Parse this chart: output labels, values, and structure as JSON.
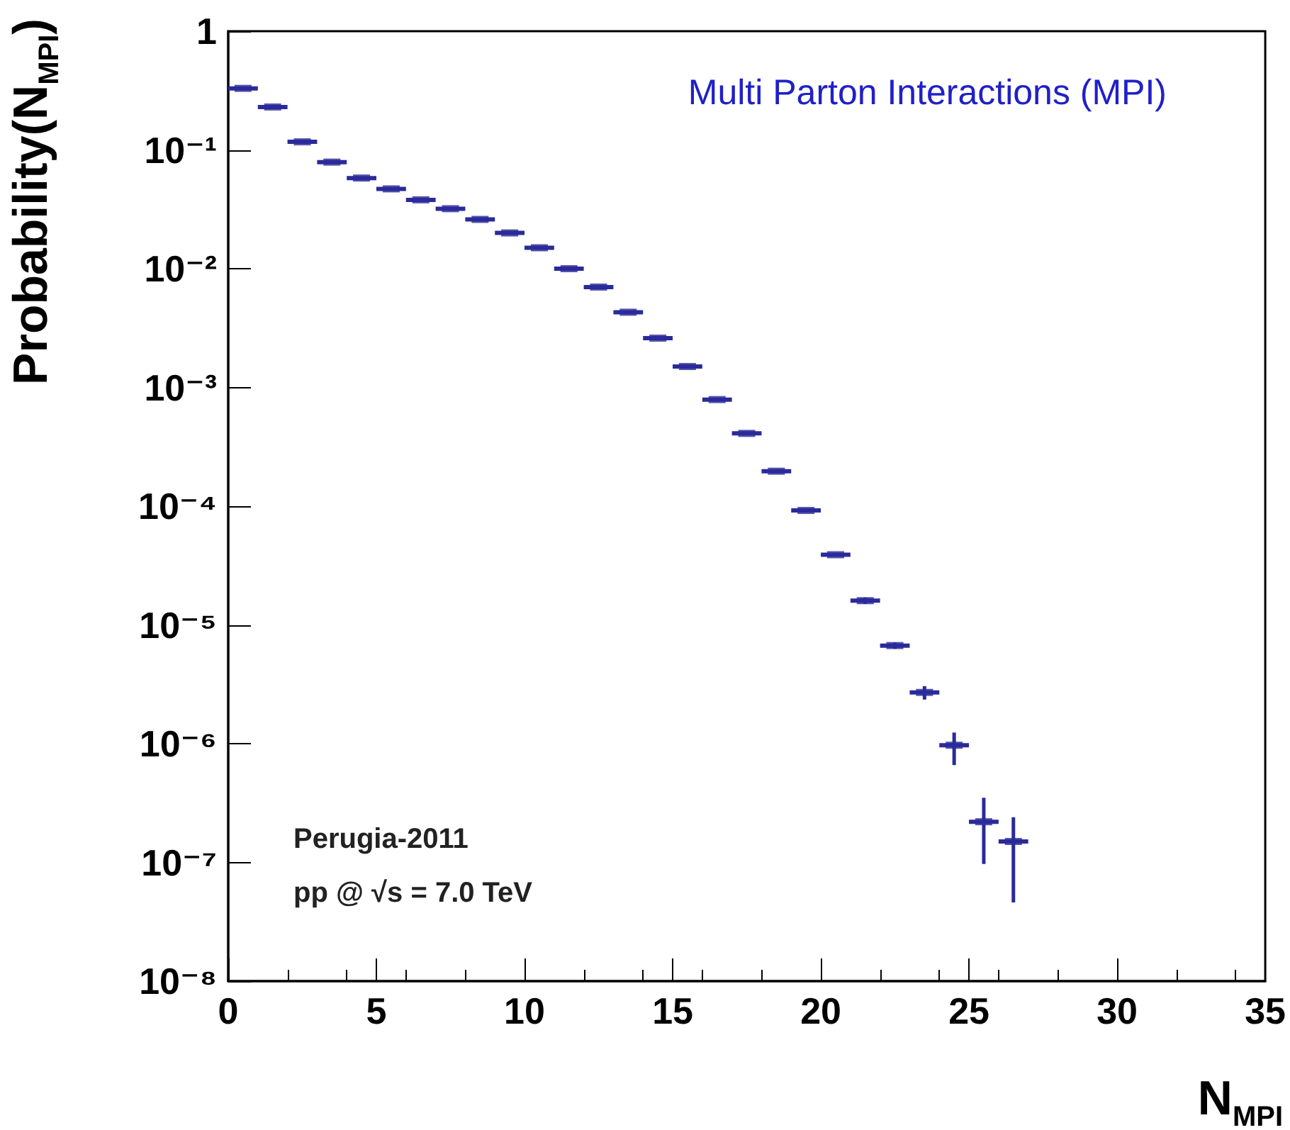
{
  "chart_data": {
    "type": "scatter",
    "title": "Multi Parton Interactions (MPI)",
    "xlabel": "N$_{MPI}$",
    "ylabel": "Probability(N$_{MPI}$)",
    "annotations": [
      "Perugia-2011",
      "pp @ √s = 7.0 TeV"
    ],
    "x": [
      0.5,
      1.5,
      2.5,
      3.5,
      4.5,
      5.5,
      6.5,
      7.5,
      8.5,
      9.5,
      10.5,
      11.5,
      12.5,
      13.5,
      14.5,
      15.5,
      16.5,
      17.5,
      18.5,
      19.5,
      20.5,
      21.5,
      22.5,
      23.5,
      24.5,
      25.5,
      26.5
    ],
    "xerrors": [
      0.5,
      0.5,
      0.5,
      0.5,
      0.5,
      0.5,
      0.5,
      0.5,
      0.5,
      0.5,
      0.5,
      0.5,
      0.5,
      0.5,
      0.5,
      0.5,
      0.5,
      0.5,
      0.5,
      0.5,
      0.5,
      0.5,
      0.5,
      0.5,
      0.5,
      0.5,
      0.5
    ],
    "values": [
      0.33,
      0.23,
      0.117,
      0.079,
      0.058,
      0.047,
      0.038,
      0.032,
      0.026,
      0.02,
      0.015,
      0.01,
      0.007,
      0.0043,
      0.0026,
      0.0015,
      0.00079,
      0.00041,
      0.000197,
      9.2e-05,
      3.9e-05,
      1.6e-05,
      6.7e-06,
      2.7e-06,
      9.7e-07,
      2.2e-07,
      1.5e-07
    ],
    "errors": [
      null,
      null,
      null,
      null,
      null,
      null,
      null,
      null,
      null,
      null,
      null,
      null,
      null,
      null,
      null,
      null,
      null,
      null,
      null,
      null,
      null,
      [
        1.5e-05,
        1.7e-05
      ],
      [
        6.3e-06,
        7.1e-06
      ],
      [
        2.35e-06,
        3.05e-06
      ],
      [
        6.6e-07,
        1.24e-06
      ],
      [
        9.7e-08,
        3.5e-07
      ],
      [
        4.6e-08,
        2.4e-07
      ]
    ],
    "color": "#2a2a9a",
    "log": "y",
    "xlim": [
      0,
      35
    ],
    "xticks": [
      0,
      5,
      10,
      15,
      20,
      25,
      30,
      35
    ],
    "ylim": [
      1e-08,
      1
    ],
    "yticks": [
      {
        "value": 1e-08,
        "label": "10⁻⁸"
      },
      {
        "value": 1e-07,
        "label": "10⁻⁷"
      },
      {
        "value": 1e-06,
        "label": "10⁻⁶"
      },
      {
        "value": 1e-05,
        "label": "10⁻⁵"
      },
      {
        "value": 0.0001,
        "label": "10⁻⁴"
      },
      {
        "value": 0.001,
        "label": "10⁻³"
      },
      {
        "value": 0.01,
        "label": "10⁻²"
      },
      {
        "value": 0.1,
        "label": "10⁻¹"
      },
      1
    ]
  }
}
